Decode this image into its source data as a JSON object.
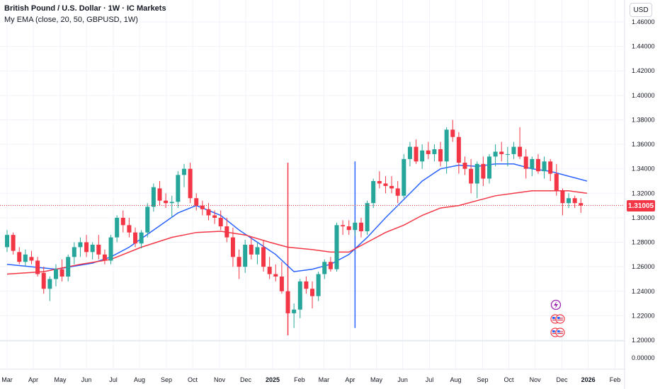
{
  "header": {
    "title": "British Pound / U.S. Dollar · 1W · IC Markets",
    "indicator": "My EMA (close, 20, 50, GBPUSD, 1W)"
  },
  "currency_button": "USD",
  "last_price": "1.31005",
  "colors": {
    "up": "#26a69a",
    "down": "#f23645",
    "ema_fast": "#2962ff",
    "ema_slow": "#f23645",
    "vline_red": "#f23645",
    "vline_blue": "#2962ff",
    "grid": "#f0f3fa"
  },
  "event_icons": [
    "lightning-icon",
    "us-flag-icon",
    "us-flag-icon"
  ],
  "chart_data": {
    "type": "candlestick",
    "y_ticks": [
      "1.46000",
      "1.44000",
      "1.42000",
      "1.40000",
      "1.38000",
      "1.36000",
      "1.34000",
      "1.32000",
      "1.30000",
      "1.28000",
      "1.26000",
      "1.24000",
      "1.22000",
      "1.20000"
    ],
    "y_tick_values": [
      1.46,
      1.44,
      1.42,
      1.4,
      1.38,
      1.36,
      1.34,
      1.32,
      1.3,
      1.28,
      1.26,
      1.24,
      1.22,
      1.2
    ],
    "volume_tick": "0.00000",
    "ylim": [
      1.195,
      1.465
    ],
    "x_labels": [
      "Mar",
      "Apr",
      "May",
      "Jun",
      "Jul",
      "Aug",
      "Sep",
      "Oct",
      "Nov",
      "Dec",
      "2025",
      "Feb",
      "Mar",
      "Apr",
      "May",
      "Jun",
      "Jul",
      "Aug",
      "Sep",
      "Oct",
      "Nov",
      "Dec",
      "2026",
      "Feb"
    ],
    "x_label_weeks": [
      0,
      4.3,
      8.7,
      13,
      17.4,
      21.7,
      26.1,
      30.4,
      34.8,
      39.1,
      43.5,
      47.9,
      51.9,
      56.2,
      60.5,
      64.8,
      69.2,
      73.5,
      77.9,
      82.2,
      86.5,
      90.9,
      95.2,
      99.6
    ],
    "candles": [
      [
        1.276,
        1.29,
        1.272,
        1.286
      ],
      [
        1.286,
        1.288,
        1.27,
        1.273
      ],
      [
        1.272,
        1.276,
        1.262,
        1.264
      ],
      [
        1.264,
        1.274,
        1.26,
        1.27
      ],
      [
        1.268,
        1.273,
        1.262,
        1.265
      ],
      [
        1.265,
        1.268,
        1.252,
        1.254
      ],
      [
        1.255,
        1.26,
        1.238,
        1.242
      ],
      [
        1.242,
        1.252,
        1.232,
        1.25
      ],
      [
        1.25,
        1.262,
        1.244,
        1.258
      ],
      [
        1.258,
        1.266,
        1.248,
        1.252
      ],
      [
        1.252,
        1.27,
        1.248,
        1.268
      ],
      [
        1.268,
        1.28,
        1.262,
        1.276
      ],
      [
        1.276,
        1.284,
        1.268,
        1.28
      ],
      [
        1.28,
        1.286,
        1.268,
        1.272
      ],
      [
        1.272,
        1.28,
        1.266,
        1.278
      ],
      [
        1.278,
        1.286,
        1.266,
        1.27
      ],
      [
        1.27,
        1.274,
        1.262,
        1.265
      ],
      [
        1.265,
        1.286,
        1.262,
        1.284
      ],
      [
        1.284,
        1.302,
        1.28,
        1.3
      ],
      [
        1.3,
        1.306,
        1.288,
        1.294
      ],
      [
        1.294,
        1.3,
        1.284,
        1.288
      ],
      [
        1.288,
        1.292,
        1.276,
        1.279
      ],
      [
        1.279,
        1.29,
        1.275,
        1.288
      ],
      [
        1.288,
        1.312,
        1.284,
        1.309
      ],
      [
        1.309,
        1.328,
        1.305,
        1.325
      ],
      [
        1.324,
        1.33,
        1.31,
        1.314
      ],
      [
        1.314,
        1.32,
        1.308,
        1.312
      ],
      [
        1.312,
        1.318,
        1.3,
        1.313
      ],
      [
        1.313,
        1.338,
        1.308,
        1.335
      ],
      [
        1.335,
        1.344,
        1.325,
        1.34
      ],
      [
        1.34,
        1.345,
        1.312,
        1.316
      ],
      [
        1.316,
        1.32,
        1.306,
        1.31
      ],
      [
        1.31,
        1.314,
        1.302,
        1.307
      ],
      [
        1.307,
        1.312,
        1.298,
        1.302
      ],
      [
        1.302,
        1.306,
        1.295,
        1.3
      ],
      [
        1.3,
        1.306,
        1.29,
        1.293
      ],
      [
        1.293,
        1.3,
        1.28,
        1.284
      ],
      [
        1.284,
        1.292,
        1.26,
        1.268
      ],
      [
        1.268,
        1.274,
        1.25,
        1.26
      ],
      [
        1.26,
        1.282,
        1.255,
        1.278
      ],
      [
        1.278,
        1.284,
        1.266,
        1.27
      ],
      [
        1.27,
        1.28,
        1.262,
        1.276
      ],
      [
        1.276,
        1.282,
        1.256,
        1.26
      ],
      [
        1.26,
        1.268,
        1.25,
        1.254
      ],
      [
        1.254,
        1.262,
        1.248,
        1.252
      ],
      [
        1.252,
        1.264,
        1.238,
        1.24
      ],
      [
        1.24,
        1.246,
        1.204,
        1.222
      ],
      [
        1.222,
        1.23,
        1.21,
        1.225
      ],
      [
        1.225,
        1.25,
        1.218,
        1.248
      ],
      [
        1.248,
        1.252,
        1.238,
        1.242
      ],
      [
        1.242,
        1.248,
        1.226,
        1.236
      ],
      [
        1.236,
        1.256,
        1.232,
        1.254
      ],
      [
        1.254,
        1.266,
        1.25,
        1.264
      ],
      [
        1.264,
        1.268,
        1.256,
        1.258
      ],
      [
        1.258,
        1.296,
        1.256,
        1.294
      ],
      [
        1.294,
        1.298,
        1.286,
        1.293
      ],
      [
        1.293,
        1.298,
        1.286,
        1.29
      ],
      [
        1.29,
        1.298,
        1.285,
        1.296
      ],
      [
        1.296,
        1.3,
        1.284,
        1.289
      ],
      [
        1.289,
        1.314,
        1.286,
        1.312
      ],
      [
        1.312,
        1.332,
        1.308,
        1.33
      ],
      [
        1.33,
        1.338,
        1.324,
        1.328
      ],
      [
        1.328,
        1.334,
        1.32,
        1.326
      ],
      [
        1.326,
        1.334,
        1.32,
        1.324
      ],
      [
        1.324,
        1.33,
        1.312,
        1.318
      ],
      [
        1.318,
        1.352,
        1.316,
        1.348
      ],
      [
        1.348,
        1.362,
        1.342,
        1.358
      ],
      [
        1.358,
        1.364,
        1.344,
        1.346
      ],
      [
        1.346,
        1.36,
        1.34,
        1.355
      ],
      [
        1.355,
        1.362,
        1.348,
        1.352
      ],
      [
        1.352,
        1.36,
        1.346,
        1.356
      ],
      [
        1.356,
        1.362,
        1.342,
        1.346
      ],
      [
        1.346,
        1.374,
        1.336,
        1.372
      ],
      [
        1.372,
        1.38,
        1.362,
        1.366
      ],
      [
        1.366,
        1.37,
        1.336,
        1.345
      ],
      [
        1.345,
        1.35,
        1.335,
        1.34
      ],
      [
        1.34,
        1.348,
        1.32,
        1.328
      ],
      [
        1.328,
        1.346,
        1.316,
        1.344
      ],
      [
        1.344,
        1.35,
        1.326,
        1.332
      ],
      [
        1.332,
        1.352,
        1.328,
        1.35
      ],
      [
        1.35,
        1.36,
        1.342,
        1.354
      ],
      [
        1.354,
        1.362,
        1.346,
        1.352
      ],
      [
        1.352,
        1.358,
        1.342,
        1.352
      ],
      [
        1.352,
        1.362,
        1.348,
        1.358
      ],
      [
        1.358,
        1.374,
        1.348,
        1.35
      ],
      [
        1.35,
        1.356,
        1.332,
        1.34
      ],
      [
        1.34,
        1.35,
        1.334,
        1.348
      ],
      [
        1.348,
        1.352,
        1.336,
        1.338
      ],
      [
        1.338,
        1.35,
        1.332,
        1.346
      ],
      [
        1.346,
        1.348,
        1.33,
        1.336
      ],
      [
        1.336,
        1.344,
        1.318,
        1.322
      ],
      [
        1.322,
        1.324,
        1.302,
        1.312
      ],
      [
        1.312,
        1.32,
        1.308,
        1.316
      ],
      [
        1.316,
        1.318,
        1.308,
        1.312
      ],
      [
        1.312,
        1.316,
        1.304,
        1.31
      ]
    ],
    "series": [
      {
        "name": "EMA 20",
        "color": "#2962ff",
        "values": [
          [
            0,
            1.262
          ],
          [
            8,
            1.258
          ],
          [
            14,
            1.263
          ],
          [
            17,
            1.268
          ],
          [
            20,
            1.276
          ],
          [
            24,
            1.29
          ],
          [
            28,
            1.304
          ],
          [
            31,
            1.31
          ],
          [
            35,
            1.302
          ],
          [
            38,
            1.29
          ],
          [
            41,
            1.28
          ],
          [
            44,
            1.27
          ],
          [
            47,
            1.256
          ],
          [
            50,
            1.258
          ],
          [
            53,
            1.262
          ],
          [
            56,
            1.27
          ],
          [
            59,
            1.284
          ],
          [
            62,
            1.3
          ],
          [
            65,
            1.315
          ],
          [
            68,
            1.33
          ],
          [
            71,
            1.34
          ],
          [
            74,
            1.343
          ],
          [
            77,
            1.342
          ],
          [
            80,
            1.344
          ],
          [
            83,
            1.344
          ],
          [
            86,
            1.34
          ],
          [
            89,
            1.338
          ],
          [
            92,
            1.334
          ],
          [
            95,
            1.33
          ]
        ]
      },
      {
        "name": "EMA 50",
        "color": "#f23645",
        "values": [
          [
            0,
            1.254
          ],
          [
            6,
            1.256
          ],
          [
            12,
            1.262
          ],
          [
            17,
            1.266
          ],
          [
            22,
            1.276
          ],
          [
            27,
            1.284
          ],
          [
            31,
            1.288
          ],
          [
            35,
            1.289
          ],
          [
            39,
            1.286
          ],
          [
            43,
            1.28
          ],
          [
            46,
            1.276
          ],
          [
            50,
            1.274
          ],
          [
            53,
            1.272
          ],
          [
            56,
            1.272
          ],
          [
            59,
            1.28
          ],
          [
            62,
            1.288
          ],
          [
            65,
            1.294
          ],
          [
            68,
            1.302
          ],
          [
            71,
            1.308
          ],
          [
            74,
            1.31
          ],
          [
            77,
            1.314
          ],
          [
            80,
            1.318
          ],
          [
            83,
            1.32
          ],
          [
            86,
            1.322
          ],
          [
            89,
            1.322
          ],
          [
            92,
            1.322
          ],
          [
            95,
            1.32
          ]
        ]
      }
    ],
    "vertical_lines": [
      {
        "week": 46,
        "color": "#f23645",
        "from": 1.345,
        "to": 1.204
      },
      {
        "week": 57,
        "color": "#2962ff",
        "from": 1.346,
        "to": 1.21
      }
    ],
    "last_price_value": 1.31005,
    "grid": true
  }
}
